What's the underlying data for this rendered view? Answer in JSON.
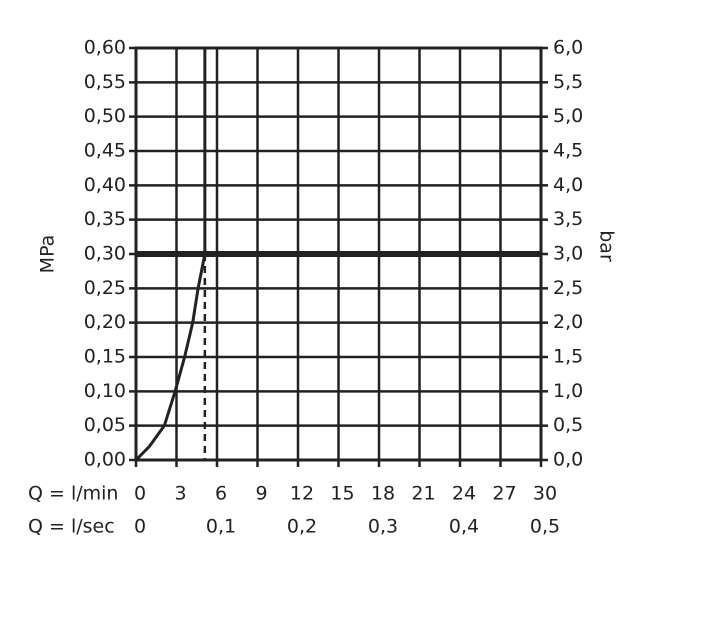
{
  "chart_data": {
    "type": "line",
    "ylabel": "MPa",
    "y2label": "bar",
    "xlabel": "Q = l/min",
    "x2label": "Q = l/sec",
    "xlim": [
      0,
      30
    ],
    "xticks": [
      0,
      3,
      6,
      9,
      12,
      15,
      18,
      21,
      24,
      27,
      30
    ],
    "x2lim": [
      0,
      0.5
    ],
    "x2ticks": [
      0,
      {
        "value": 0.1,
        "label": "0,1"
      },
      {
        "value": 0.2,
        "label": "0,2"
      },
      {
        "value": 0.3,
        "label": "0,3"
      },
      {
        "value": 0.4,
        "label": "0,4"
      },
      {
        "value": 0.5,
        "label": "0,5"
      }
    ],
    "ylim": [
      0,
      0.6
    ],
    "yticks": [
      {
        "value": 0,
        "label": "0,00"
      },
      {
        "value": 0.05,
        "label": "0,05"
      },
      {
        "value": 0.1,
        "label": "0,10"
      },
      {
        "value": 0.15,
        "label": "0,15"
      },
      {
        "value": 0.2,
        "label": "0,20"
      },
      {
        "value": 0.25,
        "label": "0,25"
      },
      {
        "value": 0.3,
        "label": "0,30"
      },
      {
        "value": 0.35,
        "label": "0,35"
      },
      {
        "value": 0.4,
        "label": "0,40"
      },
      {
        "value": 0.45,
        "label": "0,45"
      },
      {
        "value": 0.5,
        "label": "0,50"
      },
      {
        "value": 0.55,
        "label": "0,55"
      },
      {
        "value": 0.6,
        "label": "0,60"
      }
    ],
    "y2lim": [
      0,
      6
    ],
    "y2ticks": [
      {
        "value": 0,
        "label": "0,0"
      },
      {
        "value": 0.5,
        "label": "0,5"
      },
      {
        "value": 1,
        "label": "1,0"
      },
      {
        "value": 1.5,
        "label": "1,5"
      },
      {
        "value": 2,
        "label": "2,0"
      },
      {
        "value": 2.5,
        "label": "2,5"
      },
      {
        "value": 3,
        "label": "3,0"
      },
      {
        "value": 3.5,
        "label": "3,5"
      },
      {
        "value": 4,
        "label": "4,0"
      },
      {
        "value": 4.5,
        "label": "4,5"
      },
      {
        "value": 5,
        "label": "5,0"
      },
      {
        "value": 5.5,
        "label": "5,5"
      },
      {
        "value": 6,
        "label": "6,0"
      }
    ],
    "grid": true,
    "color": "#222",
    "reference_y": 0.3,
    "drop_line": {
      "x": 5.1,
      "y": 0.3
    },
    "series": [
      {
        "color": "#222",
        "x": [
          0,
          1.0,
          2.1,
          2.9,
          3.6,
          4.2,
          4.6,
          5.1,
          5.1
        ],
        "values": [
          0,
          0.02,
          0.05,
          0.1,
          0.15,
          0.2,
          0.25,
          0.3,
          0.6
        ]
      }
    ]
  }
}
